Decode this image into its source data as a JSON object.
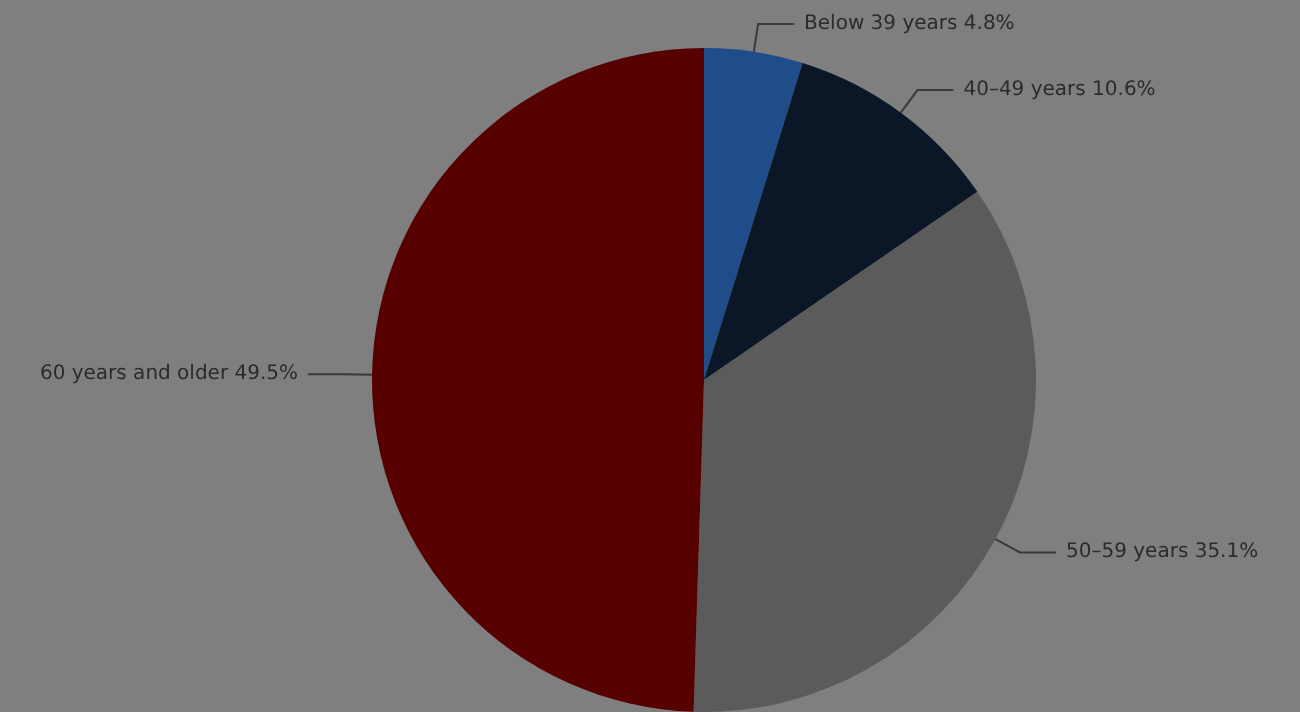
{
  "chart_data": {
    "type": "pie",
    "categories": [
      "Below 39 years",
      "40–49 years",
      "50–59 years",
      "60 years and older"
    ],
    "values": [
      4.8,
      10.6,
      35.1,
      49.5
    ],
    "value_labels": [
      "4.8%",
      "10.6%",
      "35.1%",
      "49.5%"
    ],
    "colors": [
      "#1f4d8a",
      "#0b1727",
      "#5b5b5b",
      "#560000"
    ],
    "legend": false
  }
}
